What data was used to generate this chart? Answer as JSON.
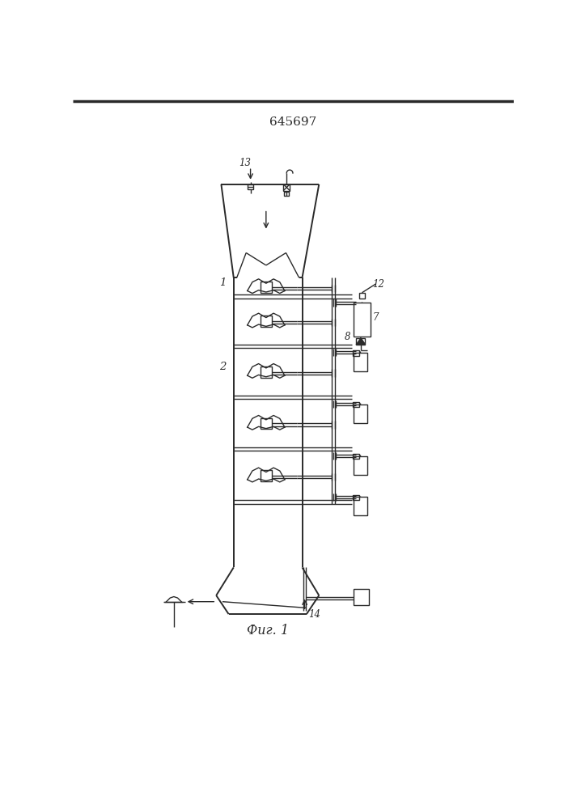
{
  "title": "645697",
  "fig_label": "Фиг. 1",
  "bg_color": "#ffffff",
  "line_color": "#2a2a2a",
  "title_fontsize": 11,
  "label_fontsize": 8.5
}
